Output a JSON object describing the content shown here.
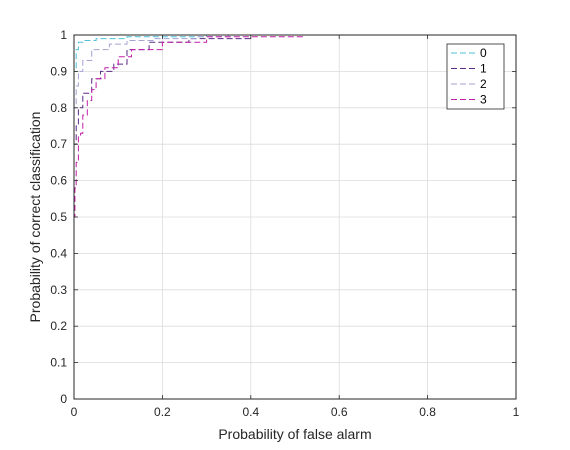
{
  "chart_data": {
    "type": "line",
    "xlabel": "Probability of false alarm",
    "ylabel": "Probability of correct classification",
    "xlim": [
      0,
      1
    ],
    "ylim": [
      0,
      1
    ],
    "xticks": [
      "0",
      "0.2",
      "0.4",
      "0.6",
      "0.8",
      "1"
    ],
    "yticks": [
      "0",
      "0.1",
      "0.2",
      "0.3",
      "0.4",
      "0.5",
      "0.6",
      "0.7",
      "0.8",
      "0.9",
      "1"
    ],
    "grid": true,
    "legend_position": "top-right",
    "line_style": "dashed",
    "series": [
      {
        "name": "0",
        "color": "#4ec0d8",
        "x": [
          0,
          0,
          0.005,
          0.005,
          0.01,
          0.01,
          0.02,
          0.02,
          0.05,
          0.05,
          0.12,
          0.12,
          0.3,
          0.3,
          1
        ],
        "y": [
          0,
          0.9,
          0.9,
          0.96,
          0.96,
          0.98,
          0.98,
          0.985,
          0.985,
          0.99,
          0.99,
          0.995,
          0.995,
          1,
          1
        ]
      },
      {
        "name": "1",
        "color": "#5b2a86",
        "x": [
          0,
          0,
          0.005,
          0.005,
          0.01,
          0.01,
          0.02,
          0.02,
          0.04,
          0.04,
          0.06,
          0.06,
          0.09,
          0.09,
          0.12,
          0.12,
          0.17,
          0.17,
          0.26,
          0.26,
          0.4,
          0.4,
          1
        ],
        "y": [
          0,
          0.7,
          0.7,
          0.75,
          0.75,
          0.8,
          0.8,
          0.84,
          0.84,
          0.88,
          0.88,
          0.9,
          0.9,
          0.92,
          0.92,
          0.96,
          0.96,
          0.98,
          0.98,
          0.99,
          0.99,
          1,
          1
        ]
      },
      {
        "name": "2",
        "color": "#a3a3d4",
        "x": [
          0,
          0,
          0.005,
          0.005,
          0.01,
          0.01,
          0.02,
          0.02,
          0.04,
          0.04,
          0.08,
          0.08,
          0.12,
          0.12,
          0.18,
          0.18,
          0.28,
          0.28,
          0.35,
          0.35,
          1
        ],
        "y": [
          0,
          0.8,
          0.8,
          0.86,
          0.86,
          0.9,
          0.9,
          0.93,
          0.93,
          0.96,
          0.96,
          0.975,
          0.975,
          0.985,
          0.985,
          0.99,
          0.99,
          0.995,
          0.995,
          1,
          1
        ]
      },
      {
        "name": "3",
        "color": "#c21fa8",
        "x": [
          0,
          0,
          0.002,
          0.002,
          0.005,
          0.005,
          0.01,
          0.01,
          0.015,
          0.015,
          0.02,
          0.02,
          0.03,
          0.03,
          0.04,
          0.04,
          0.05,
          0.05,
          0.07,
          0.07,
          0.1,
          0.1,
          0.13,
          0.13,
          0.2,
          0.2,
          0.3,
          0.3,
          0.52,
          0.52,
          1
        ],
        "y": [
          0,
          0.5,
          0.5,
          0.58,
          0.58,
          0.65,
          0.65,
          0.72,
          0.72,
          0.73,
          0.73,
          0.78,
          0.78,
          0.82,
          0.82,
          0.85,
          0.85,
          0.88,
          0.88,
          0.91,
          0.91,
          0.94,
          0.94,
          0.96,
          0.96,
          0.98,
          0.98,
          0.995,
          0.995,
          1,
          1
        ]
      }
    ]
  }
}
